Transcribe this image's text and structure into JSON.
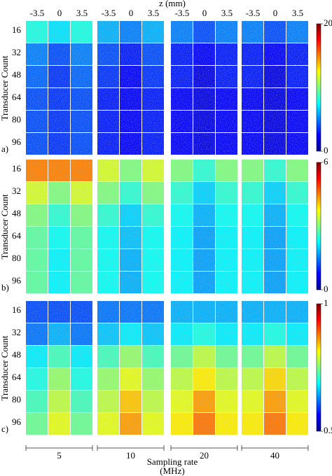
{
  "chart_data": [
    {
      "type": "heatmap",
      "label": "a)",
      "xlabel": "z (mm)",
      "categories": [
        "-3.5",
        "0",
        "3.5",
        "-3.5",
        "0",
        "3.5",
        "-3.5",
        "0",
        "3.5",
        "-3.5",
        "0",
        "3.5"
      ],
      "ylabel": "Transducer Count",
      "rows": [
        16,
        32,
        48,
        64,
        80,
        96
      ],
      "colormap": "jet",
      "clim": [
        0,
        20
      ],
      "cticks": [
        0,
        20
      ],
      "values": [
        [
          8,
          7,
          8,
          6,
          5,
          6,
          5,
          4,
          5,
          5,
          4,
          5
        ],
        [
          5,
          4,
          5,
          4,
          3,
          4,
          3,
          2.5,
          3,
          3,
          2.5,
          3
        ],
        [
          4.5,
          3.5,
          4.5,
          3.5,
          2.5,
          3.5,
          3,
          2,
          3,
          3,
          2,
          3
        ],
        [
          4,
          3.5,
          4,
          3,
          2.5,
          3,
          2.5,
          2,
          2.5,
          2.5,
          2,
          2.5
        ],
        [
          4,
          3.5,
          4,
          3,
          2.5,
          3,
          2.5,
          2,
          2.5,
          2.5,
          2,
          2.5
        ],
        [
          4,
          3.5,
          4,
          3,
          2.5,
          3,
          2.5,
          2,
          2.5,
          2.5,
          2,
          2.5
        ]
      ]
    },
    {
      "type": "heatmap",
      "label": "b)",
      "ylabel": "Transducer Count",
      "rows": [
        16,
        32,
        48,
        64,
        80,
        96
      ],
      "colormap": "jet",
      "clim": [
        0,
        6
      ],
      "cticks": [
        0,
        6
      ],
      "values": [
        [
          4.5,
          4.5,
          4.5,
          3.5,
          3,
          3.5,
          3,
          2.5,
          3,
          3,
          2.5,
          3
        ],
        [
          3.5,
          3,
          3.5,
          3,
          2.5,
          3,
          2.5,
          2,
          2.5,
          2.5,
          2,
          2.5
        ],
        [
          3,
          2.5,
          3,
          2.5,
          2,
          2.5,
          2.3,
          1.8,
          2.3,
          2.3,
          1.8,
          2.3
        ],
        [
          2.8,
          2.3,
          2.8,
          2.3,
          1.9,
          2.3,
          2.2,
          1.7,
          2.2,
          2.2,
          1.7,
          2.2
        ],
        [
          2.8,
          2.2,
          2.8,
          2.3,
          1.8,
          2.3,
          2.2,
          1.7,
          2.2,
          2.2,
          1.7,
          2.2
        ],
        [
          2.8,
          2.2,
          2.8,
          2.3,
          1.8,
          2.3,
          2.2,
          1.7,
          2.2,
          2.2,
          1.7,
          2.2
        ]
      ]
    },
    {
      "type": "heatmap",
      "label": "c)",
      "ylabel": "Transducer Count",
      "rows": [
        16,
        32,
        48,
        64,
        80,
        96
      ],
      "colormap": "jet",
      "clim": [
        0.5,
        1
      ],
      "cticks": [
        0.5,
        1
      ],
      "values": [
        [
          0.6,
          0.6,
          0.6,
          0.62,
          0.62,
          0.62,
          0.65,
          0.65,
          0.65,
          0.65,
          0.65,
          0.65
        ],
        [
          0.62,
          0.65,
          0.62,
          0.66,
          0.68,
          0.66,
          0.68,
          0.7,
          0.68,
          0.68,
          0.7,
          0.68
        ],
        [
          0.68,
          0.72,
          0.68,
          0.72,
          0.76,
          0.72,
          0.74,
          0.78,
          0.74,
          0.74,
          0.78,
          0.74
        ],
        [
          0.7,
          0.76,
          0.7,
          0.76,
          0.8,
          0.76,
          0.78,
          0.82,
          0.78,
          0.78,
          0.83,
          0.78
        ],
        [
          0.72,
          0.78,
          0.72,
          0.78,
          0.84,
          0.78,
          0.8,
          0.86,
          0.8,
          0.8,
          0.86,
          0.8
        ],
        [
          0.74,
          0.8,
          0.74,
          0.8,
          0.86,
          0.8,
          0.82,
          0.88,
          0.82,
          0.82,
          0.88,
          0.82
        ]
      ],
      "groups": [
        5,
        10,
        20,
        40
      ],
      "group_label": "Sampling rate",
      "group_unit": "(MHz)"
    }
  ]
}
